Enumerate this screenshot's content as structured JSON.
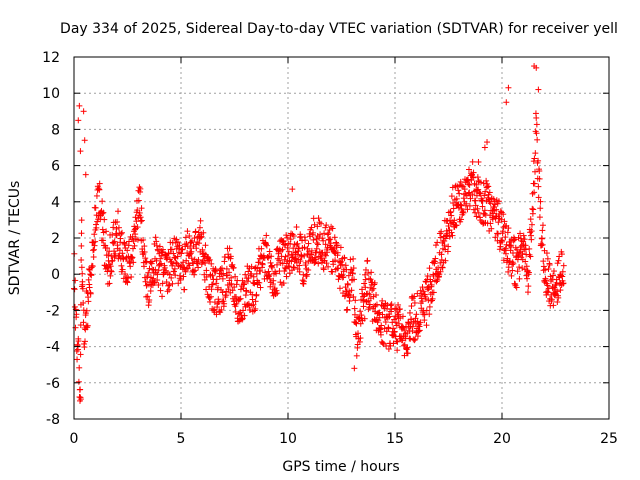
{
  "chart_data": {
    "type": "scatter",
    "title": "Day 334 of 2025, Sidereal Day-to-day VTEC variation (SDTVAR) for receiver yell",
    "xlabel": "GPS time / hours",
    "ylabel": "SDTVAR / TECUs",
    "xlim": [
      0,
      25
    ],
    "ylim": [
      -8,
      12
    ],
    "xticks": [
      0,
      5,
      10,
      15,
      20,
      25
    ],
    "yticks": [
      -8,
      -6,
      -4,
      -2,
      0,
      2,
      4,
      6,
      8,
      10,
      12
    ],
    "grid": true,
    "marker": "plus",
    "color": "#ff0000",
    "series": [
      {
        "name": "SDTVAR",
        "trend": [
          [
            0.0,
            0.5
          ],
          [
            0.1,
            -3.0
          ],
          [
            0.2,
            -4.5
          ],
          [
            0.3,
            -6.5
          ],
          [
            0.35,
            2.5
          ],
          [
            0.4,
            -1.5
          ],
          [
            0.5,
            -3.0
          ],
          [
            0.6,
            -2.0
          ],
          [
            0.7,
            -1.0
          ],
          [
            0.85,
            0.5
          ],
          [
            1.0,
            3.0
          ],
          [
            1.2,
            4.0
          ],
          [
            1.4,
            2.0
          ],
          [
            1.6,
            0.5
          ],
          [
            1.8,
            1.5
          ],
          [
            2.0,
            2.5
          ],
          [
            2.3,
            1.0
          ],
          [
            2.6,
            0.5
          ],
          [
            2.9,
            2.5
          ],
          [
            3.1,
            4.0
          ],
          [
            3.3,
            0.0
          ],
          [
            3.5,
            -1.0
          ],
          [
            3.8,
            1.0
          ],
          [
            4.1,
            0.0
          ],
          [
            4.5,
            0.5
          ],
          [
            4.8,
            1.0
          ],
          [
            5.1,
            0.0
          ],
          [
            5.3,
            1.5
          ],
          [
            5.6,
            1.0
          ],
          [
            5.9,
            2.0
          ],
          [
            6.2,
            0.0
          ],
          [
            6.6,
            -1.0
          ],
          [
            6.9,
            -1.0
          ],
          [
            7.2,
            0.5
          ],
          [
            7.5,
            -1.0
          ],
          [
            7.8,
            -2.0
          ],
          [
            8.1,
            -0.5
          ],
          [
            8.4,
            -1.0
          ],
          [
            8.7,
            0.5
          ],
          [
            9.0,
            1.0
          ],
          [
            9.3,
            -0.5
          ],
          [
            9.6,
            0.5
          ],
          [
            10.0,
            1.0
          ],
          [
            10.4,
            1.5
          ],
          [
            10.7,
            0.5
          ],
          [
            11.0,
            1.5
          ],
          [
            11.3,
            2.0
          ],
          [
            11.7,
            1.5
          ],
          [
            12.0,
            1.5
          ],
          [
            12.4,
            0.5
          ],
          [
            12.8,
            -1.0
          ],
          [
            13.0,
            0.5
          ],
          [
            13.2,
            -3.5
          ],
          [
            13.4,
            -2.5
          ],
          [
            13.7,
            -0.5
          ],
          [
            14.0,
            -1.5
          ],
          [
            14.4,
            -2.5
          ],
          [
            14.8,
            -3.0
          ],
          [
            15.2,
            -2.5
          ],
          [
            15.5,
            -3.5
          ],
          [
            15.8,
            -2.5
          ],
          [
            16.2,
            -2.0
          ],
          [
            16.5,
            -1.5
          ],
          [
            16.8,
            0.0
          ],
          [
            17.1,
            1.0
          ],
          [
            17.4,
            2.0
          ],
          [
            17.7,
            3.5
          ],
          [
            18.0,
            4.0
          ],
          [
            18.3,
            4.5
          ],
          [
            18.6,
            5.0
          ],
          [
            18.9,
            4.0
          ],
          [
            19.2,
            4.0
          ],
          [
            19.5,
            3.5
          ],
          [
            19.8,
            3.0
          ],
          [
            20.1,
            2.0
          ],
          [
            20.4,
            1.0
          ],
          [
            20.7,
            0.5
          ],
          [
            21.0,
            1.5
          ],
          [
            21.2,
            0.0
          ],
          [
            21.4,
            3.0
          ],
          [
            21.6,
            8.0
          ],
          [
            21.8,
            3.0
          ],
          [
            22.0,
            0.5
          ],
          [
            22.3,
            -1.0
          ],
          [
            22.6,
            -0.5
          ],
          [
            22.9,
            0.5
          ]
        ],
        "spikes": [
          [
            0.2,
            8.5
          ],
          [
            0.25,
            9.3
          ],
          [
            0.3,
            6.8
          ],
          [
            0.45,
            9.0
          ],
          [
            0.5,
            7.4
          ],
          [
            0.55,
            5.5
          ],
          [
            0.28,
            -7.0
          ],
          [
            0.32,
            -6.9
          ],
          [
            10.2,
            4.7
          ],
          [
            13.1,
            -5.2
          ],
          [
            15.1,
            -4.2
          ],
          [
            20.3,
            10.3
          ],
          [
            20.2,
            9.5
          ],
          [
            21.5,
            11.5
          ],
          [
            21.6,
            11.4
          ],
          [
            21.7,
            10.2
          ],
          [
            19.3,
            7.3
          ],
          [
            19.2,
            7.0
          ],
          [
            18.9,
            6.2
          ]
        ]
      }
    ]
  }
}
